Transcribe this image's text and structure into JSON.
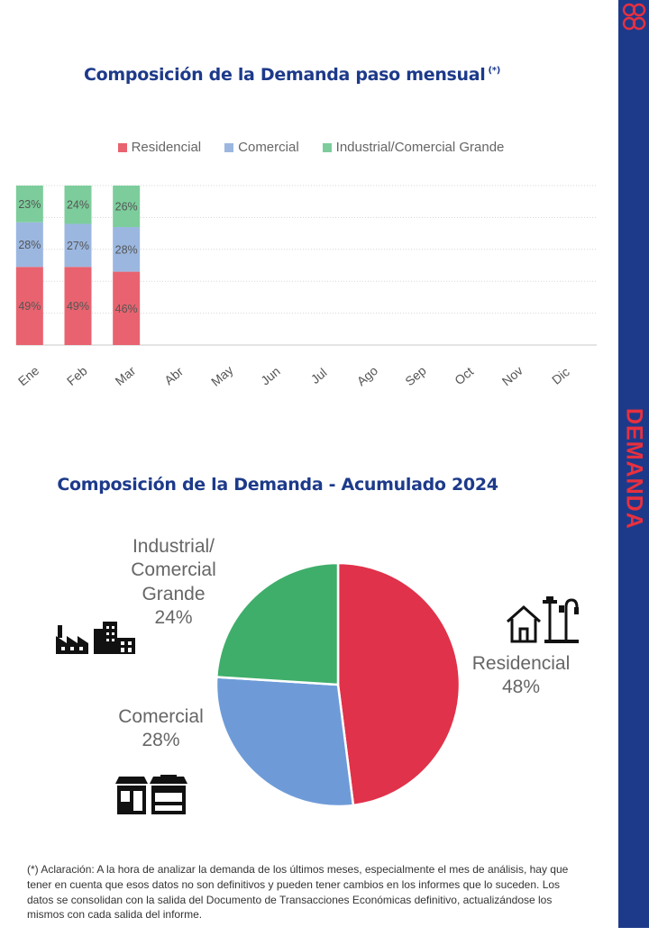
{
  "sidebar": {
    "label": "DEMANDA",
    "color": "#1d3a8a",
    "label_color": "#e8303f"
  },
  "chart_monthly": {
    "title": "Composición de la Demanda paso mensual",
    "title_note": "(*)"
  },
  "chart_pie": {
    "title": "Composición de la Demanda - Acumulado 2024",
    "labels": {
      "industrial": "Industrial/ Comercial Grande",
      "industrial_pct": "24%",
      "comercial": "Comercial",
      "comercial_pct": "28%",
      "residencial": "Residencial",
      "residencial_pct": "48%"
    }
  },
  "icons": [
    "factory-icon",
    "house-streetlight-icon",
    "store-icon"
  ],
  "footnote": "(*) Aclaración: A la hora de analizar la demanda de los últimos meses, especialmente el mes de análisis, hay que tener en cuenta que esos datos no son definitivos y pueden tener cambios en los informes que lo suceden. Los datos se consolidan con la salida del Documento de Transacciones Económicas definitivo, actualizándose los mismos con cada salida del informe.",
  "chart_data": [
    {
      "type": "bar",
      "stacked": true,
      "title": "Composición de la Demanda paso mensual (*)",
      "categories": [
        "Ene",
        "Feb",
        "Mar",
        "Abr",
        "May",
        "Jun",
        "Jul",
        "Ago",
        "Sep",
        "Oct",
        "Nov",
        "Dic"
      ],
      "series": [
        {
          "name": "Residencial",
          "color": "#e8636f",
          "values": [
            49,
            49,
            46,
            null,
            null,
            null,
            null,
            null,
            null,
            null,
            null,
            null
          ],
          "labels": [
            "49%",
            "49%",
            "46%"
          ]
        },
        {
          "name": "Comercial",
          "color": "#9bb7e0",
          "values": [
            28,
            27,
            28,
            null,
            null,
            null,
            null,
            null,
            null,
            null,
            null,
            null
          ],
          "labels": [
            "28%",
            "27%",
            "28%"
          ]
        },
        {
          "name": "Industrial/Comercial Grande",
          "color": "#7ccd9b",
          "values": [
            23,
            24,
            26,
            null,
            null,
            null,
            null,
            null,
            null,
            null,
            null,
            null
          ],
          "labels": [
            "23%",
            "24%",
            "26%"
          ]
        }
      ],
      "ylim": [
        0,
        100
      ],
      "legend": "top-center",
      "grid": true
    },
    {
      "type": "pie",
      "title": "Composición de la Demanda - Acumulado 2024",
      "slices": [
        {
          "name": "Residencial",
          "value": 48,
          "color": "#e0324a"
        },
        {
          "name": "Comercial",
          "value": 28,
          "color": "#6e9bd8"
        },
        {
          "name": "Industrial/ Comercial Grande",
          "value": 24,
          "color": "#3fae6a"
        }
      ]
    }
  ]
}
